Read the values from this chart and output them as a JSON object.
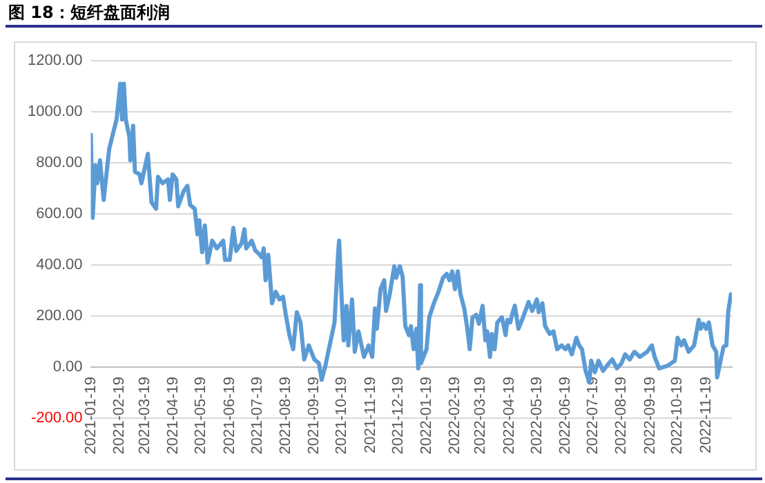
{
  "chart_data": {
    "type": "line",
    "title": "图 18：短纤盘面利润",
    "x": [
      "2021-01-19",
      "2021-01-21",
      "2021-01-24",
      "2021-01-26",
      "2021-01-29",
      "2021-02-02",
      "2021-02-08",
      "2021-02-16",
      "2021-02-20",
      "2021-02-22",
      "2021-02-24",
      "2021-02-26",
      "2021-03-02",
      "2021-03-03",
      "2021-03-06",
      "2021-03-08",
      "2021-03-13",
      "2021-03-15",
      "2021-03-22",
      "2021-03-26",
      "2021-03-31",
      "2021-04-02",
      "2021-04-07",
      "2021-04-13",
      "2021-04-15",
      "2021-04-18",
      "2021-04-22",
      "2021-04-24",
      "2021-04-30",
      "2021-05-04",
      "2021-05-07",
      "2021-05-12",
      "2021-05-15",
      "2021-05-17",
      "2021-05-20",
      "2021-05-23",
      "2021-05-26",
      "2021-05-31",
      "2021-06-05",
      "2021-06-12",
      "2021-06-14",
      "2021-06-19",
      "2021-06-23",
      "2021-06-26",
      "2021-07-02",
      "2021-07-05",
      "2021-07-07",
      "2021-07-13",
      "2021-07-17",
      "2021-07-19",
      "2021-07-24",
      "2021-07-26",
      "2021-07-28",
      "2021-07-31",
      "2021-08-04",
      "2021-08-08",
      "2021-08-12",
      "2021-08-16",
      "2021-08-19",
      "2021-08-23",
      "2021-08-27",
      "2021-08-31",
      "2021-09-04",
      "2021-09-08",
      "2021-09-13",
      "2021-09-19",
      "2021-09-24",
      "2021-09-27",
      "2021-10-01",
      "2021-10-11",
      "2021-10-15",
      "2021-10-16",
      "2021-10-19",
      "2021-10-21",
      "2021-10-24",
      "2021-10-26",
      "2021-10-30",
      "2021-11-02",
      "2021-11-06",
      "2021-11-12",
      "2021-11-17",
      "2021-11-21",
      "2021-11-24",
      "2021-11-26",
      "2021-11-30",
      "2021-12-04",
      "2021-12-06",
      "2021-12-10",
      "2021-12-15",
      "2021-12-17",
      "2021-12-21",
      "2021-12-24",
      "2021-12-27",
      "2021-12-31",
      "2022-01-02",
      "2022-01-05",
      "2022-01-08",
      "2022-01-10",
      "2022-01-12",
      "2022-01-13",
      "2022-01-19",
      "2022-01-22",
      "2022-01-27",
      "2022-02-01",
      "2022-02-06",
      "2022-02-10",
      "2022-02-13",
      "2022-02-16",
      "2022-02-19",
      "2022-02-22",
      "2022-02-25",
      "2022-03-01",
      "2022-03-04",
      "2022-03-07",
      "2022-03-10",
      "2022-03-14",
      "2022-03-17",
      "2022-03-21",
      "2022-03-24",
      "2022-03-26",
      "2022-03-29",
      "2022-03-31",
      "2022-04-03",
      "2022-04-06",
      "2022-04-11",
      "2022-04-15",
      "2022-04-17",
      "2022-04-20",
      "2022-04-22",
      "2022-04-25",
      "2022-04-29",
      "2022-05-04",
      "2022-05-10",
      "2022-05-14",
      "2022-05-19",
      "2022-05-21",
      "2022-05-25",
      "2022-05-28",
      "2022-06-02",
      "2022-06-06",
      "2022-06-10",
      "2022-06-15",
      "2022-06-19",
      "2022-06-22",
      "2022-06-26",
      "2022-07-01",
      "2022-07-04",
      "2022-07-07",
      "2022-07-11",
      "2022-07-15",
      "2022-07-17",
      "2022-07-21",
      "2022-07-25",
      "2022-07-30",
      "2022-08-03",
      "2022-08-09",
      "2022-08-14",
      "2022-08-19",
      "2022-08-23",
      "2022-08-28",
      "2022-09-02",
      "2022-09-08",
      "2022-09-16",
      "2022-09-21",
      "2022-09-24",
      "2022-09-29",
      "2022-10-08",
      "2022-10-16",
      "2022-10-19",
      "2022-10-23",
      "2022-10-26",
      "2022-10-31",
      "2022-11-06",
      "2022-11-11",
      "2022-11-13",
      "2022-11-16",
      "2022-11-19",
      "2022-11-22",
      "2022-11-26",
      "2022-11-30",
      "2022-12-01",
      "2022-12-05",
      "2022-12-08",
      "2022-12-11",
      "2022-12-13",
      "2022-12-16"
    ],
    "series": [
      {
        "color": "#5b9bd5",
        "values": [
          910,
          585,
          790,
          720,
          810,
          655,
          855,
          970,
          1110,
          970,
          1110,
          970,
          900,
          810,
          945,
          765,
          755,
          720,
          835,
          645,
          620,
          745,
          720,
          735,
          655,
          755,
          735,
          630,
          690,
          710,
          635,
          620,
          520,
          575,
          450,
          555,
          410,
          495,
          465,
          495,
          420,
          420,
          545,
          455,
          485,
          540,
          465,
          495,
          455,
          450,
          430,
          465,
          340,
          440,
          250,
          295,
          265,
          275,
          205,
          125,
          70,
          215,
          175,
          30,
          85,
          30,
          15,
          -50,
          5,
          175,
          450,
          495,
          250,
          105,
          240,
          85,
          265,
          60,
          140,
          40,
          85,
          40,
          230,
          150,
          305,
          340,
          220,
          285,
          395,
          350,
          395,
          355,
          160,
          125,
          160,
          70,
          150,
          -5,
          320,
          15,
          70,
          195,
          250,
          295,
          350,
          365,
          340,
          375,
          305,
          375,
          285,
          230,
          160,
          70,
          195,
          205,
          170,
          240,
          105,
          140,
          40,
          130,
          70,
          175,
          195,
          125,
          185,
          175,
          205,
          240,
          150,
          195,
          255,
          220,
          265,
          215,
          250,
          160,
          130,
          140,
          70,
          85,
          70,
          85,
          50,
          115,
          85,
          70,
          -15,
          -60,
          25,
          -20,
          25,
          -15,
          5,
          30,
          -5,
          15,
          50,
          30,
          60,
          40,
          60,
          85,
          40,
          -5,
          5,
          25,
          115,
          85,
          105,
          60,
          85,
          185,
          150,
          170,
          150,
          175,
          85,
          60,
          -40,
          30,
          80,
          85,
          215,
          285
        ]
      }
    ],
    "xlim": [
      "2021-01-19",
      "2022-12-17"
    ],
    "xticks": [
      "2021-01-19",
      "2021-02-19",
      "2021-03-19",
      "2021-04-19",
      "2021-05-19",
      "2021-06-19",
      "2021-07-19",
      "2021-08-19",
      "2021-09-19",
      "2021-10-19",
      "2021-11-19",
      "2021-12-19",
      "2022-01-19",
      "2022-02-19",
      "2022-03-19",
      "2022-04-19",
      "2022-05-19",
      "2022-06-19",
      "2022-07-19",
      "2022-08-19",
      "2022-09-19",
      "2022-10-19",
      "2022-11-19"
    ],
    "ylim": [
      -200,
      1200
    ],
    "yticks": [
      {
        "value": -200,
        "label": "-200.00"
      },
      {
        "value": 0,
        "label": "0.00"
      },
      {
        "value": 200,
        "label": "200.00"
      },
      {
        "value": 400,
        "label": "400.00"
      },
      {
        "value": 600,
        "label": "600.00"
      },
      {
        "value": 800,
        "label": "800.00"
      },
      {
        "value": 1000,
        "label": "1000.00"
      },
      {
        "value": 1200,
        "label": "1200.00"
      }
    ],
    "grid": "y",
    "legend": false,
    "marker": "none",
    "line_style": "solid"
  }
}
